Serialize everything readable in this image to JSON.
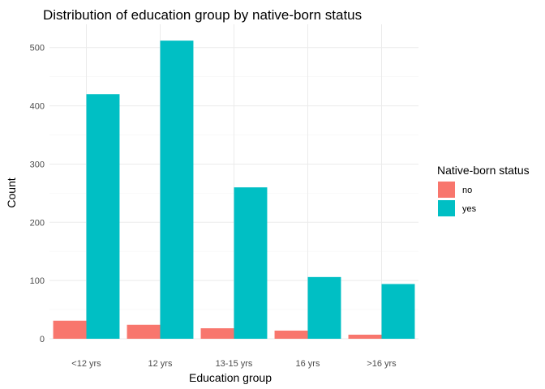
{
  "chart_data": {
    "type": "bar",
    "title": "Distribution of education group by native-born status",
    "xlabel": "Education group",
    "ylabel": "Count",
    "categories": [
      "<12 yrs",
      "12 yrs",
      "13-15 yrs",
      "16 yrs",
      ">16 yrs"
    ],
    "series": [
      {
        "name": "no",
        "color": "#F8766D",
        "values": [
          31,
          24,
          18,
          14,
          7
        ]
      },
      {
        "name": "yes",
        "color": "#00BFC4",
        "values": [
          420,
          512,
          260,
          106,
          94
        ]
      }
    ],
    "ylim": [
      0,
      540
    ],
    "yticks": [
      0,
      100,
      200,
      300,
      400,
      500
    ],
    "yticks_labels": [
      "0",
      "100",
      "200",
      "300",
      "400",
      "500"
    ],
    "grid": true,
    "legend": {
      "title": "Native-born status",
      "position": "right"
    }
  }
}
